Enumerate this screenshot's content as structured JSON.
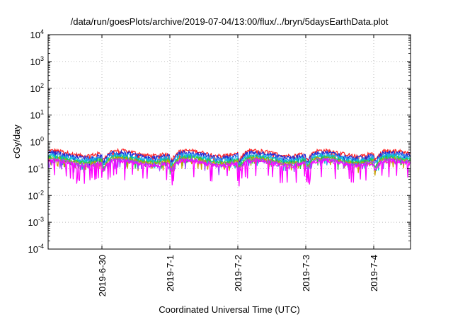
{
  "chart_data": {
    "type": "line",
    "title": "/data/run/goesPlots/archive/2019-07-04/13:00/flux/../bryn/5daysEarthData.plot",
    "xlabel": "Coordinated Universal Time (UTC)",
    "ylabel": "cGy/day",
    "yscale": "log",
    "ylim": [
      0.0001,
      10000
    ],
    "yticks": [
      {
        "base": "10",
        "exp": "-4",
        "value": 0.0001
      },
      {
        "base": "10",
        "exp": "-3",
        "value": 0.001
      },
      {
        "base": "10",
        "exp": "-2",
        "value": 0.01
      },
      {
        "base": "10",
        "exp": "-1",
        "value": 0.1
      },
      {
        "base": "10",
        "exp": "0",
        "value": 1
      },
      {
        "base": "10",
        "exp": "1",
        "value": 10
      },
      {
        "base": "10",
        "exp": "2",
        "value": 100
      },
      {
        "base": "10",
        "exp": "3",
        "value": 1000
      },
      {
        "base": "10",
        "exp": "4",
        "value": 10000
      }
    ],
    "xlim": [
      "2019-06-29 05:00",
      "2019-07-04 13:00"
    ],
    "xticks": [
      "2019-6-30",
      "2019-7-1",
      "2019-7-2",
      "2019-7-3",
      "2019-7-4"
    ],
    "grid": true,
    "legend": "none",
    "series": [
      {
        "color": "#ff2020",
        "baseline": 0.34,
        "dips": 0.72
      },
      {
        "color": "#1c28d8",
        "baseline": 0.29,
        "dips": 0.7
      },
      {
        "color": "#2aa0f0",
        "baseline": 0.24,
        "dips": 0.7
      },
      {
        "color": "#00c8c8",
        "baseline": 0.21,
        "dips": 0.72
      },
      {
        "color": "#2ecc40",
        "baseline": 0.19,
        "dips": 0.75
      },
      {
        "color": "#c8a000",
        "baseline": 0.17,
        "dips": 0.75
      },
      {
        "color": "#a040ff",
        "baseline": 0.155,
        "dips": 0.75
      },
      {
        "color": "#ff00ff",
        "baseline": 0.14,
        "dips": 0.35
      }
    ]
  }
}
